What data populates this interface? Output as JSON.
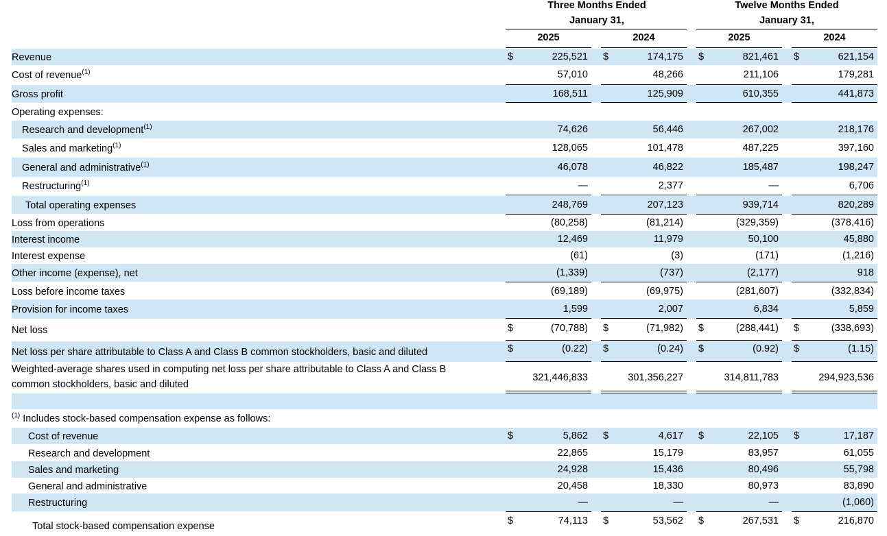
{
  "headers": {
    "three_months": [
      "Three Months Ended",
      "January 31,"
    ],
    "twelve_months": [
      "Twelve Months Ended",
      "January 31,"
    ],
    "years": [
      "2025",
      "2024",
      "2025",
      "2024"
    ]
  },
  "currency_symbol": "$",
  "footnote_marker": "(1)",
  "footnote_intro": "Includes stock-based compensation expense as follows:",
  "rows": [
    {
      "label": "Revenue",
      "values": [
        "225,521",
        "174,175",
        "821,461",
        "621,154"
      ]
    },
    {
      "label": "Cost of revenue",
      "values": [
        "57,010",
        "48,266",
        "211,106",
        "179,281"
      ]
    },
    {
      "label": "Gross profit",
      "values": [
        "168,511",
        "125,909",
        "610,355",
        "441,873"
      ]
    },
    {
      "label": "Operating expenses:",
      "values": [
        "",
        "",
        "",
        ""
      ]
    },
    {
      "label": "Research and development",
      "values": [
        "74,626",
        "56,446",
        "267,002",
        "218,176"
      ]
    },
    {
      "label": "Sales and marketing",
      "values": [
        "128,065",
        "101,478",
        "487,225",
        "397,160"
      ]
    },
    {
      "label": "General and administrative",
      "values": [
        "46,078",
        "46,822",
        "185,487",
        "198,247"
      ]
    },
    {
      "label": "Restructuring",
      "values": [
        "—",
        "2,377",
        "—",
        "6,706"
      ]
    },
    {
      "label": "Total operating expenses",
      "values": [
        "248,769",
        "207,123",
        "939,714",
        "820,289"
      ]
    },
    {
      "label": "Loss from operations",
      "values": [
        "(80,258)",
        "(81,214)",
        "(329,359)",
        "(378,416)"
      ]
    },
    {
      "label": "Interest income",
      "values": [
        "12,469",
        "11,979",
        "50,100",
        "45,880"
      ]
    },
    {
      "label": "Interest expense",
      "values": [
        "(61)",
        "(3)",
        "(171)",
        "(1,216)"
      ]
    },
    {
      "label": "Other income (expense), net",
      "values": [
        "(1,339)",
        "(737)",
        "(2,177)",
        "918"
      ]
    },
    {
      "label": "Loss before income taxes",
      "values": [
        "(69,189)",
        "(69,975)",
        "(281,607)",
        "(332,834)"
      ]
    },
    {
      "label": "Provision for income taxes",
      "values": [
        "1,599",
        "2,007",
        "6,834",
        "5,859"
      ]
    },
    {
      "label": "Net loss",
      "values": [
        "(70,788)",
        "(71,982)",
        "(288,441)",
        "(338,693)"
      ]
    },
    {
      "label": "Net loss per share attributable to Class A and Class B common stockholders, basic and diluted",
      "values": [
        "(0.22)",
        "(0.24)",
        "(0.92)",
        "(1.15)"
      ]
    },
    {
      "label_lines": [
        "Weighted-average shares used in computing net loss per share attributable to Class A and Class B",
        "common stockholders, basic and diluted"
      ],
      "values": [
        "321,446,833",
        "301,356,227",
        "314,811,783",
        "294,923,536"
      ]
    }
  ],
  "sbc_rows": [
    {
      "label": "Cost of revenue",
      "values": [
        "5,862",
        "4,617",
        "22,105",
        "17,187"
      ]
    },
    {
      "label": "Research and development",
      "values": [
        "22,865",
        "15,179",
        "83,957",
        "61,055"
      ]
    },
    {
      "label": "Sales and marketing",
      "values": [
        "24,928",
        "15,436",
        "80,496",
        "55,798"
      ]
    },
    {
      "label": "General and administrative",
      "values": [
        "20,458",
        "18,330",
        "80,973",
        "83,890"
      ]
    },
    {
      "label": "Restructuring",
      "values": [
        "—",
        "—",
        "—",
        "(1,060)"
      ]
    },
    {
      "label": "Total stock-based compensation expense",
      "values": [
        "74,113",
        "53,562",
        "267,531",
        "216,870"
      ]
    }
  ]
}
